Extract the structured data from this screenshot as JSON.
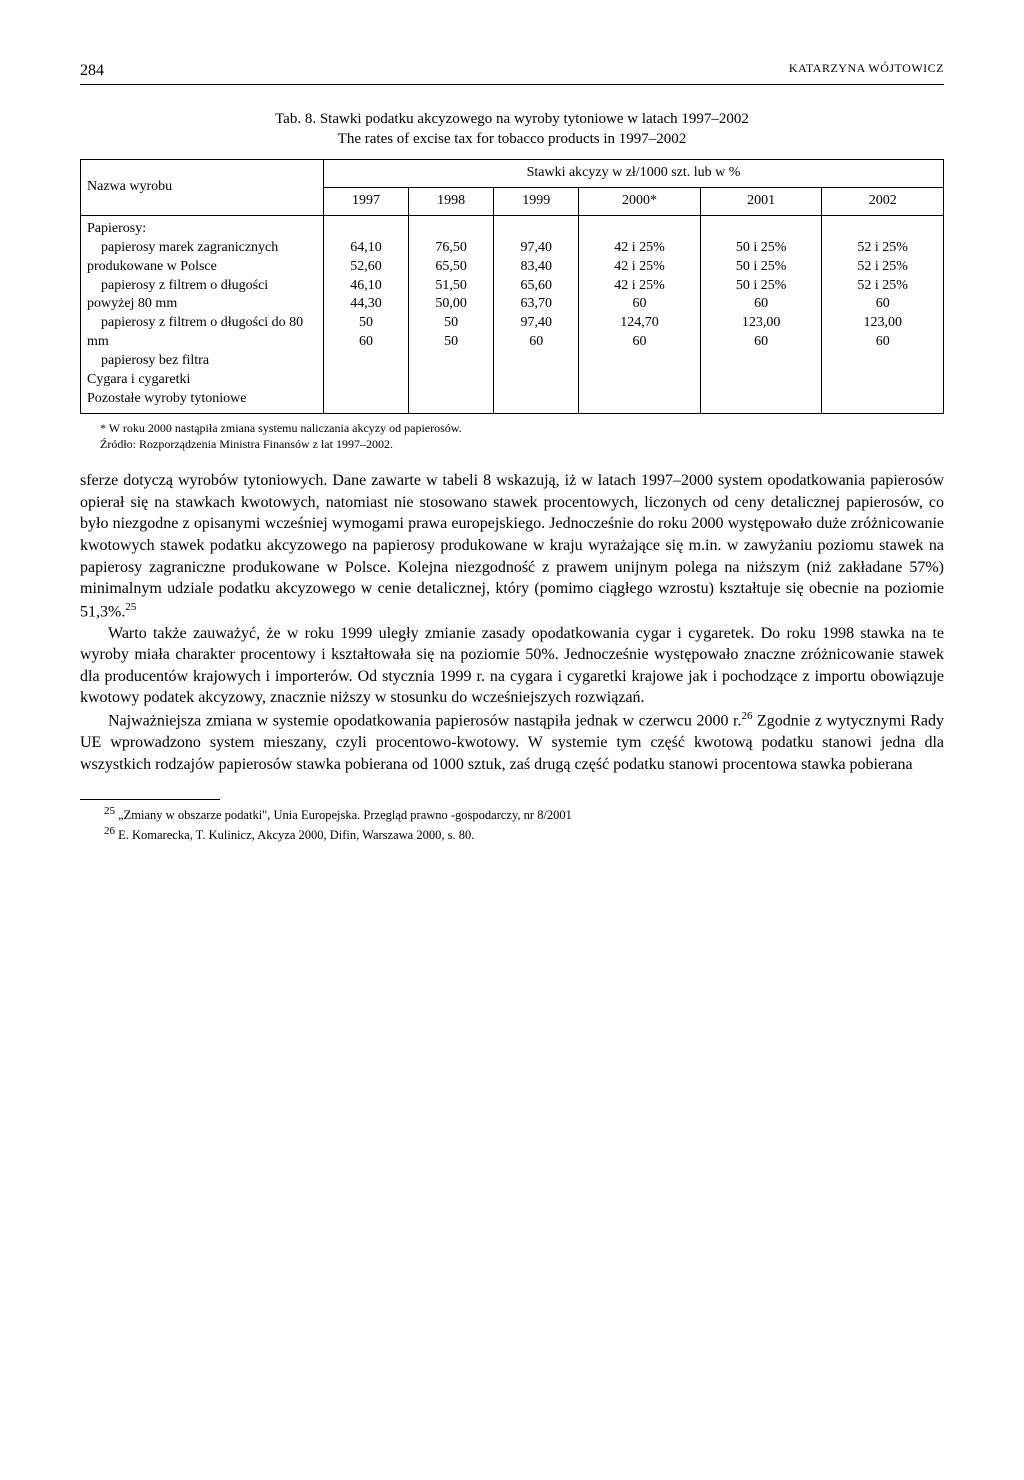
{
  "page": {
    "number": "284",
    "author": "KATARZYNA WÓJTOWICZ"
  },
  "table": {
    "caption_line1": "Tab. 8. Stawki podatku akcyzowego na wyroby tytoniowe w latach 1997–2002",
    "caption_line2": "The rates of excise tax for tobacco products in 1997–2002",
    "header_rowlabel": "Nazwa wyrobu",
    "header_super": "Stawki akcyzy w zł/1000 szt. lub w %",
    "years": [
      "1997",
      "1998",
      "1999",
      "2000*",
      "2001",
      "2002"
    ],
    "section_header": "Papierosy:",
    "rows": [
      {
        "label": "papierosy marek zagranicznych produkowane w Polsce",
        "values": [
          "64,10",
          "76,50",
          "97,40",
          "42 i 25%",
          "50 i 25%",
          "52 i 25%"
        ]
      },
      {
        "label": "papierosy z filtrem o długości powyżej 80 mm",
        "values": [
          "52,60",
          "65,50",
          "83,40",
          "42 i 25%",
          "50 i 25%",
          "52 i 25%"
        ]
      },
      {
        "label": "papierosy z filtrem o długości do 80 mm",
        "values": [
          "46,10",
          "51,50",
          "65,60",
          "42 i 25%",
          "50 i 25%",
          "52 i 25%"
        ]
      },
      {
        "label": "papierosy bez filtra",
        "values": [
          "44,30",
          "50,00",
          "63,70",
          "60",
          "60",
          "60"
        ]
      },
      {
        "label": "Cygara i cygaretki",
        "values": [
          "50",
          "50",
          "97,40",
          "124,70",
          "123,00",
          "123,00"
        ]
      },
      {
        "label": "Pozostałe wyroby tytoniowe",
        "values": [
          "60",
          "50",
          "60",
          "60",
          "60",
          "60"
        ]
      }
    ],
    "note": "* W roku 2000 nastąpiła zmiana systemu naliczania akcyzy od papierosów.",
    "source": "Źródło: Rozporządzenia Ministra Finansów z lat 1997–2002."
  },
  "body": {
    "p1": "sferze dotyczą wyrobów tytoniowych. Dane zawarte w tabeli 8 wskazują, iż w latach 1997–2000 system opodatkowania papierosów opierał się na stawkach kwotowych, natomiast nie stosowano stawek procentowych, liczonych od ceny detalicznej papierosów, co było niezgodne z opisanymi wcześniej wymogami prawa europejskiego. Jednocześnie do roku 2000 występowało duże zróżnicowanie kwotowych stawek podatku akcyzowego na papierosy produkowane w kraju wyrażające się m.in. w zawyżaniu poziomu stawek na papierosy zagraniczne produkowane w Polsce. Kolejna niezgodność z prawem unijnym polega na niższym (niż zakładane 57%) minimalnym udziale podatku akcyzowego w cenie detalicznej, który (pomimo ciągłego wzrostu) kształtuje się obecnie na poziomie 51,3%.",
    "p1_ref": "25",
    "p2": "Warto także zauważyć, że w roku 1999 uległy zmianie zasady opodatkowania cygar i cygaretek. Do roku 1998 stawka na te wyroby miała charakter procentowy i kształtowała się na poziomie 50%. Jednocześnie występowało znaczne zróżnicowanie stawek dla producentów krajowych i importerów. Od stycznia 1999 r. na cygara i cygaretki krajowe jak i pochodzące z importu obowiązuje kwotowy podatek akcyzowy, znacznie niższy w stosunku do wcześniejszych rozwiązań.",
    "p3a": "Najważniejsza zmiana w systemie opodatkowania papierosów nastąpiła jednak w czerwcu 2000 r.",
    "p3_ref": "26",
    "p3b": " Zgodnie z wytycznymi Rady UE wprowadzono system mieszany, czyli procentowo-kwotowy. W systemie tym część kwotową podatku stanowi jedna dla wszystkich rodzajów papierosów stawka pobierana od 1000 sztuk, zaś drugą część podatku stanowi procentowa stawka pobierana"
  },
  "footnotes": {
    "f25_ref": "25",
    "f25": " „Zmiany w obszarze podatki\", Unia Europejska. Przegląd prawno -gospodarczy, nr 8/2001",
    "f26_ref": "26",
    "f26": " E. Komarecka, T. Kulinicz, Akcyza 2000, Difin, Warszawa 2000, s. 80."
  }
}
